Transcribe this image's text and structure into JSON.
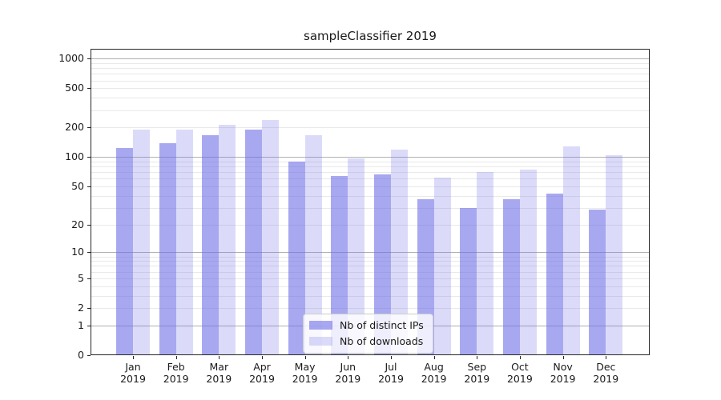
{
  "chart_data": {
    "type": "bar",
    "title": "sampleClassifier 2019",
    "categories": [
      {
        "month": "Jan",
        "year": "2019"
      },
      {
        "month": "Feb",
        "year": "2019"
      },
      {
        "month": "Mar",
        "year": "2019"
      },
      {
        "month": "Apr",
        "year": "2019"
      },
      {
        "month": "May",
        "year": "2019"
      },
      {
        "month": "Jun",
        "year": "2019"
      },
      {
        "month": "Jul",
        "year": "2019"
      },
      {
        "month": "Aug",
        "year": "2019"
      },
      {
        "month": "Sep",
        "year": "2019"
      },
      {
        "month": "Oct",
        "year": "2019"
      },
      {
        "month": "Nov",
        "year": "2019"
      },
      {
        "month": "Dec",
        "year": "2019"
      }
    ],
    "series": [
      {
        "name": "Nb of distinct IPs",
        "color": "#6e6ee8",
        "alpha": 0.6,
        "color_on_white": "#a8a8f0",
        "values": [
          125,
          140,
          167,
          192,
          90,
          64,
          67,
          37,
          30,
          37,
          42,
          29
        ]
      },
      {
        "name": "Nb of downloads",
        "color": "#6e6ee8",
        "alpha": 0.25,
        "color_on_white": "#dcdcf9",
        "values": [
          190,
          190,
          215,
          240,
          168,
          97,
          120,
          62,
          70,
          74,
          128,
          104
        ]
      }
    ],
    "y_axis": {
      "scale": "log1p",
      "ticks": [
        0,
        1,
        2,
        5,
        10,
        20,
        50,
        100,
        200,
        500,
        1000
      ],
      "ylim": [
        0,
        1258
      ],
      "major_gridlines": [
        1,
        10,
        100,
        1000
      ],
      "minor_gridline_decades": [
        1,
        10,
        100
      ]
    },
    "legend": {
      "position": "lower-center"
    },
    "grid": true
  },
  "colors": {
    "grid_major": "#b0b0b0",
    "grid_minor": "#e9e9e9",
    "spine": "#262626",
    "text": "#1a1a1a",
    "legend_border": "#cccccc",
    "legend_bg": "#ffffff",
    "legend_bg_alpha": 0.8
  }
}
